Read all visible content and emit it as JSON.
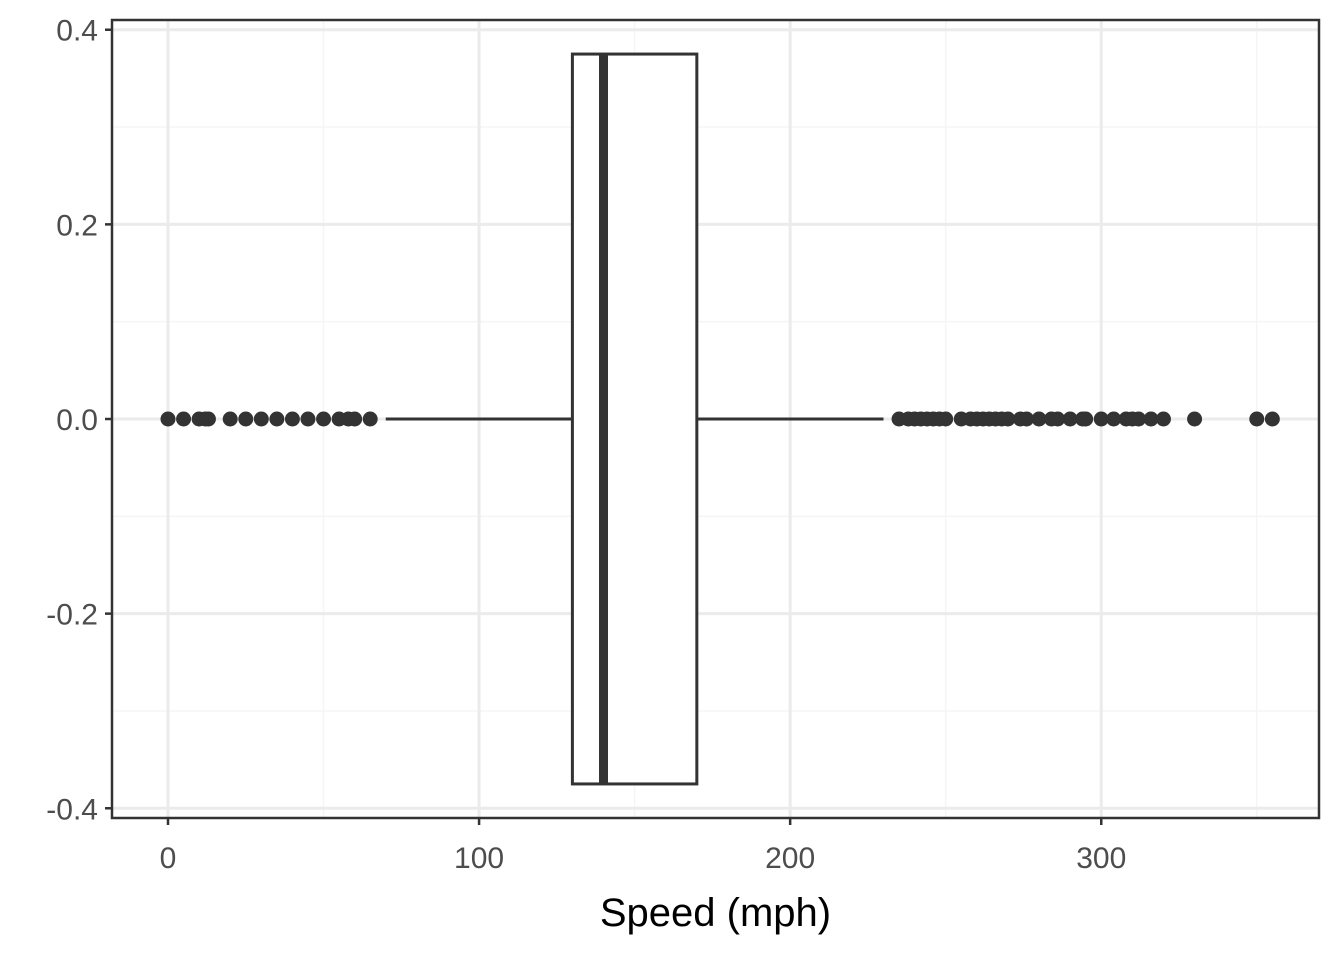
{
  "chart_data": {
    "type": "boxplot",
    "title": "",
    "xlabel": "Speed (mph)",
    "ylabel": "",
    "xlim": [
      -18,
      370
    ],
    "ylim": [
      -0.41,
      0.41
    ],
    "x_ticks": [
      0,
      100,
      200,
      300
    ],
    "y_ticks": [
      -0.4,
      -0.2,
      0.0,
      0.2,
      0.4
    ],
    "x_tick_labels": [
      "0",
      "100",
      "200",
      "300"
    ],
    "y_tick_labels": [
      "-0.4",
      "-0.2",
      "0.0",
      "0.2",
      "0.4"
    ],
    "grid": true,
    "theme": "bw",
    "box": {
      "y": 0.0,
      "halfwidth": 0.375,
      "lower_whisker": 70,
      "q1": 130,
      "median": 140,
      "q3": 170,
      "upper_whisker": 230
    },
    "outliers": [
      0,
      5,
      10,
      12,
      13,
      20,
      25,
      30,
      35,
      40,
      45,
      50,
      55,
      58,
      60,
      65,
      235,
      238,
      240,
      242,
      244,
      246,
      248,
      250,
      255,
      258,
      260,
      262,
      264,
      266,
      268,
      270,
      274,
      276,
      280,
      284,
      286,
      290,
      294,
      295,
      300,
      304,
      308,
      310,
      312,
      316,
      320,
      330,
      350,
      355
    ],
    "colors": {
      "panel_border": "#333333",
      "grid_major": "#ebebeb",
      "grid_minor": "#f5f5f5",
      "box_line": "#333333",
      "box_fill": "#ffffff",
      "points": "#333333"
    }
  }
}
